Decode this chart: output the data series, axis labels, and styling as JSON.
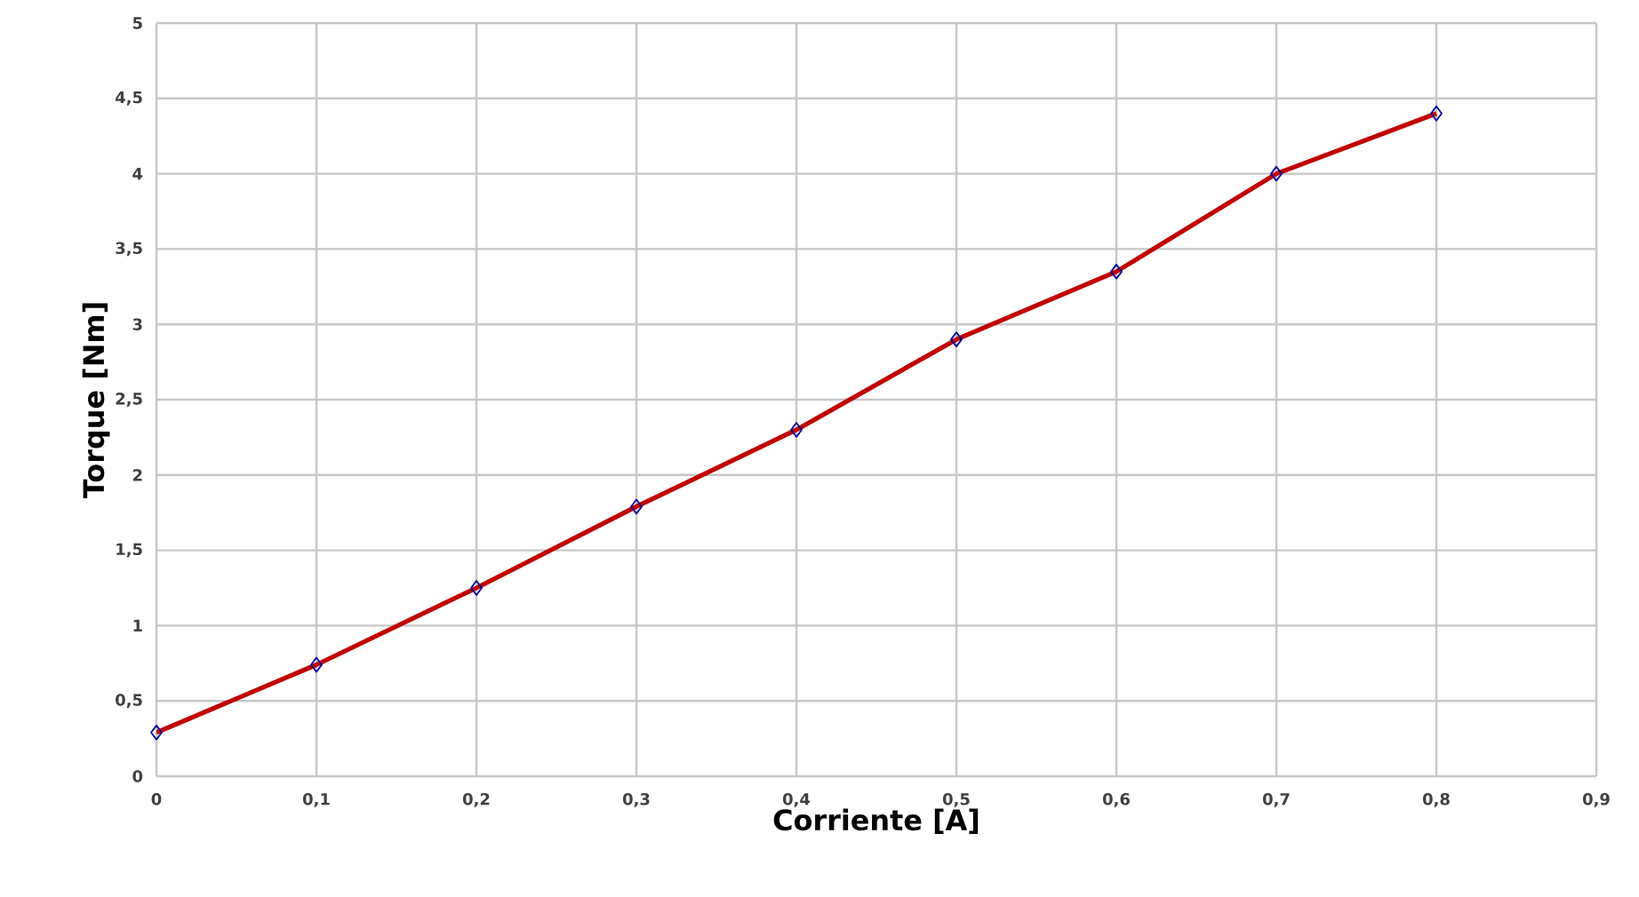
{
  "chart_data": {
    "type": "line",
    "xlabel": "Corriente [A]",
    "ylabel": "Torque [Nm]",
    "x": [
      0,
      0.1,
      0.2,
      0.3,
      0.4,
      0.5,
      0.6,
      0.7,
      0.8
    ],
    "series": [
      {
        "color": "#c00000",
        "values": [
          0.29,
          0.74,
          1.25,
          1.79,
          2.3,
          2.9,
          3.35,
          4.0,
          4.4
        ]
      }
    ],
    "xlim": [
      0,
      0.9
    ],
    "xticks": [
      0,
      {
        "value": 0.1,
        "label": "0,1"
      },
      {
        "value": 0.2,
        "label": "0,2"
      },
      {
        "value": 0.3,
        "label": "0,3"
      },
      {
        "value": 0.4,
        "label": "0,4"
      },
      {
        "value": 0.5,
        "label": "0,5"
      },
      {
        "value": 0.6,
        "label": "0,6"
      },
      {
        "value": 0.7,
        "label": "0,7"
      },
      {
        "value": 0.8,
        "label": "0,8"
      },
      {
        "value": 0.9,
        "label": "0,9"
      }
    ],
    "ylim": [
      0,
      5
    ],
    "yticks": [
      0,
      {
        "value": 0.5,
        "label": "0,5"
      },
      1,
      {
        "value": 1.5,
        "label": "1,5"
      },
      2,
      {
        "value": 2.5,
        "label": "2,5"
      },
      3,
      {
        "value": 3.5,
        "label": "3,5"
      },
      4,
      {
        "value": 4.5,
        "label": "4,5"
      },
      5
    ],
    "grid": true,
    "marker": "diamond",
    "line_style": "solid"
  }
}
